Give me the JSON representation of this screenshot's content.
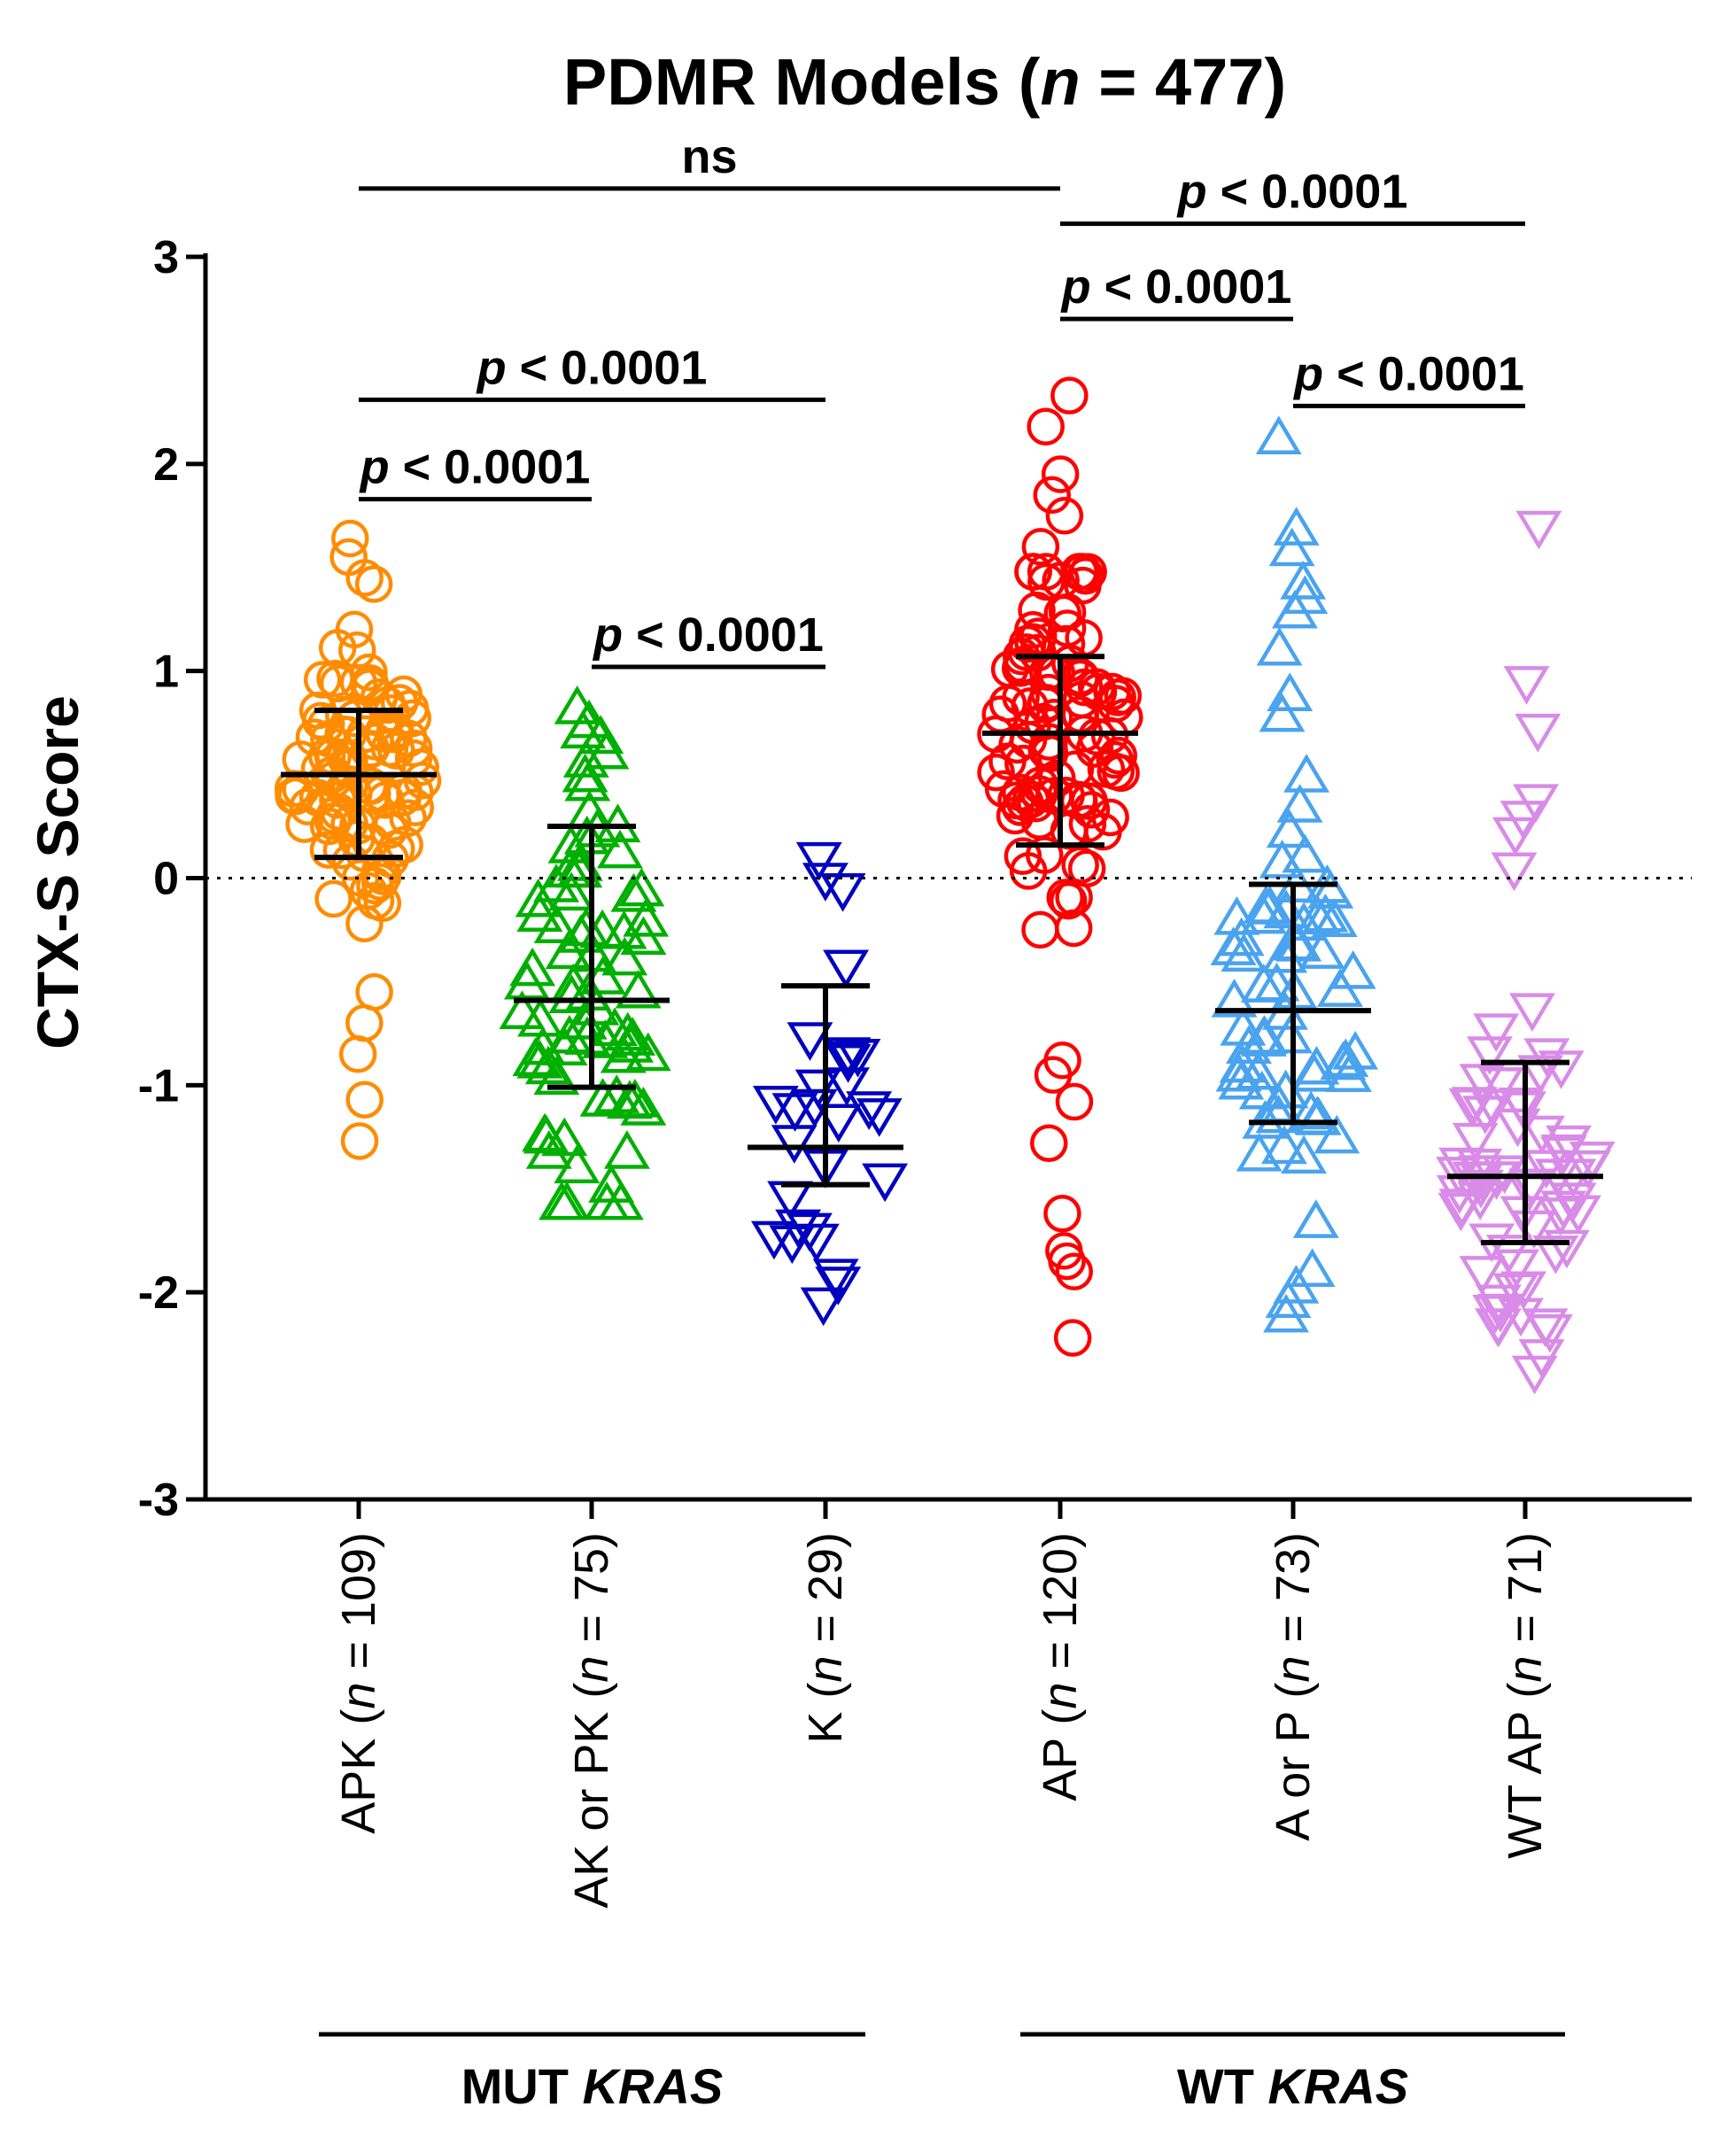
{
  "chart_data": {
    "type": "scatter",
    "title_prefix": "PDMR Models (",
    "title_n": "n",
    "title_suffix": " = 477)",
    "ylabel": "CTX-S Score",
    "ylim": [
      -3,
      3
    ],
    "yticks": [
      "-3",
      "-2",
      "-1",
      "0",
      "1",
      "2",
      "3"
    ],
    "reference_line": 0,
    "categories": [
      {
        "name": "APK",
        "n_label": "109",
        "marker": "circle",
        "color": "#ff8c00",
        "mean": 0.5,
        "sd_low": 0.1,
        "sd_high": 0.81,
        "outliers": [
          1.64,
          1.55,
          1.45,
          1.42,
          1.2,
          1.1,
          -0.55,
          -0.7,
          -0.85,
          -1.07,
          -1.27
        ]
      },
      {
        "name": "AK or PK",
        "n_label": "75",
        "marker": "triangle-up",
        "color": "#00b000",
        "mean": -0.59,
        "sd_low": -1.01,
        "sd_high": 0.25,
        "outliers": [
          0.75,
          0.7,
          0.6,
          -1.33,
          -1.4
        ]
      },
      {
        "name": "K",
        "n_label": "29",
        "marker": "triangle-down",
        "color": "#0000c0",
        "mean": -1.3,
        "sd_low": -1.48,
        "sd_high": -0.52,
        "outliers": [
          0.1,
          0.0,
          -0.05,
          -0.42,
          -0.85,
          -1.75,
          -1.95,
          -2.05
        ]
      },
      {
        "name": "AP",
        "n_label": "120",
        "marker": "circle",
        "color": "#ff0000",
        "mean": 0.7,
        "sd_low": 0.16,
        "sd_high": 1.07,
        "outliers": [
          2.33,
          2.18,
          1.95,
          1.85,
          1.75,
          1.6,
          -0.88,
          -0.95,
          -1.08,
          -1.28,
          -1.62,
          -1.8,
          -1.85,
          -1.9,
          -2.22
        ]
      },
      {
        "name": "A or P",
        "n_label": "73",
        "marker": "triangle-up",
        "color": "#4aa3ee",
        "mean": -0.64,
        "sd_low": -1.18,
        "sd_high": -0.03,
        "outliers": [
          2.12,
          1.68,
          1.58,
          1.42,
          1.35,
          1.28,
          1.1,
          0.88,
          0.78,
          0.22,
          0.1,
          -1.9,
          -1.98,
          -2.05,
          -2.12
        ]
      },
      {
        "name": "WT AP",
        "n_label": "71",
        "marker": "triangle-down",
        "color": "#d98be8",
        "mean": -1.44,
        "sd_low": -1.76,
        "sd_high": -0.89,
        "outliers": [
          1.7,
          0.95,
          0.72,
          0.38,
          0.3,
          0.22,
          0.05,
          -2.18,
          -2.3,
          -2.38
        ]
      }
    ],
    "comparisons": [
      {
        "from": 0,
        "to": 3,
        "prefix": "",
        "text": "ns",
        "y": 3.33
      },
      {
        "from": 3,
        "to": 5,
        "prefix": "p",
        "text": " < 0.0001",
        "y": 3.16
      },
      {
        "from": 3,
        "to": 4,
        "prefix": "p",
        "text": " < 0.0001",
        "y": 2.7
      },
      {
        "from": 0,
        "to": 2,
        "prefix": "p",
        "text": " < 0.0001",
        "y": 2.31
      },
      {
        "from": 4,
        "to": 5,
        "prefix": "p",
        "text": " < 0.0001",
        "y": 2.28
      },
      {
        "from": 0,
        "to": 1,
        "prefix": "p",
        "text": " < 0.0001",
        "y": 1.83
      },
      {
        "from": 1,
        "to": 2,
        "prefix": "p",
        "text": " < 0.0001",
        "y": 1.02
      }
    ],
    "groups": [
      {
        "prefix": "MUT ",
        "italic": "KRAS",
        "from": 0,
        "to": 2
      },
      {
        "prefix": "WT ",
        "italic": "KRAS",
        "from": 3,
        "to": 5
      }
    ]
  }
}
